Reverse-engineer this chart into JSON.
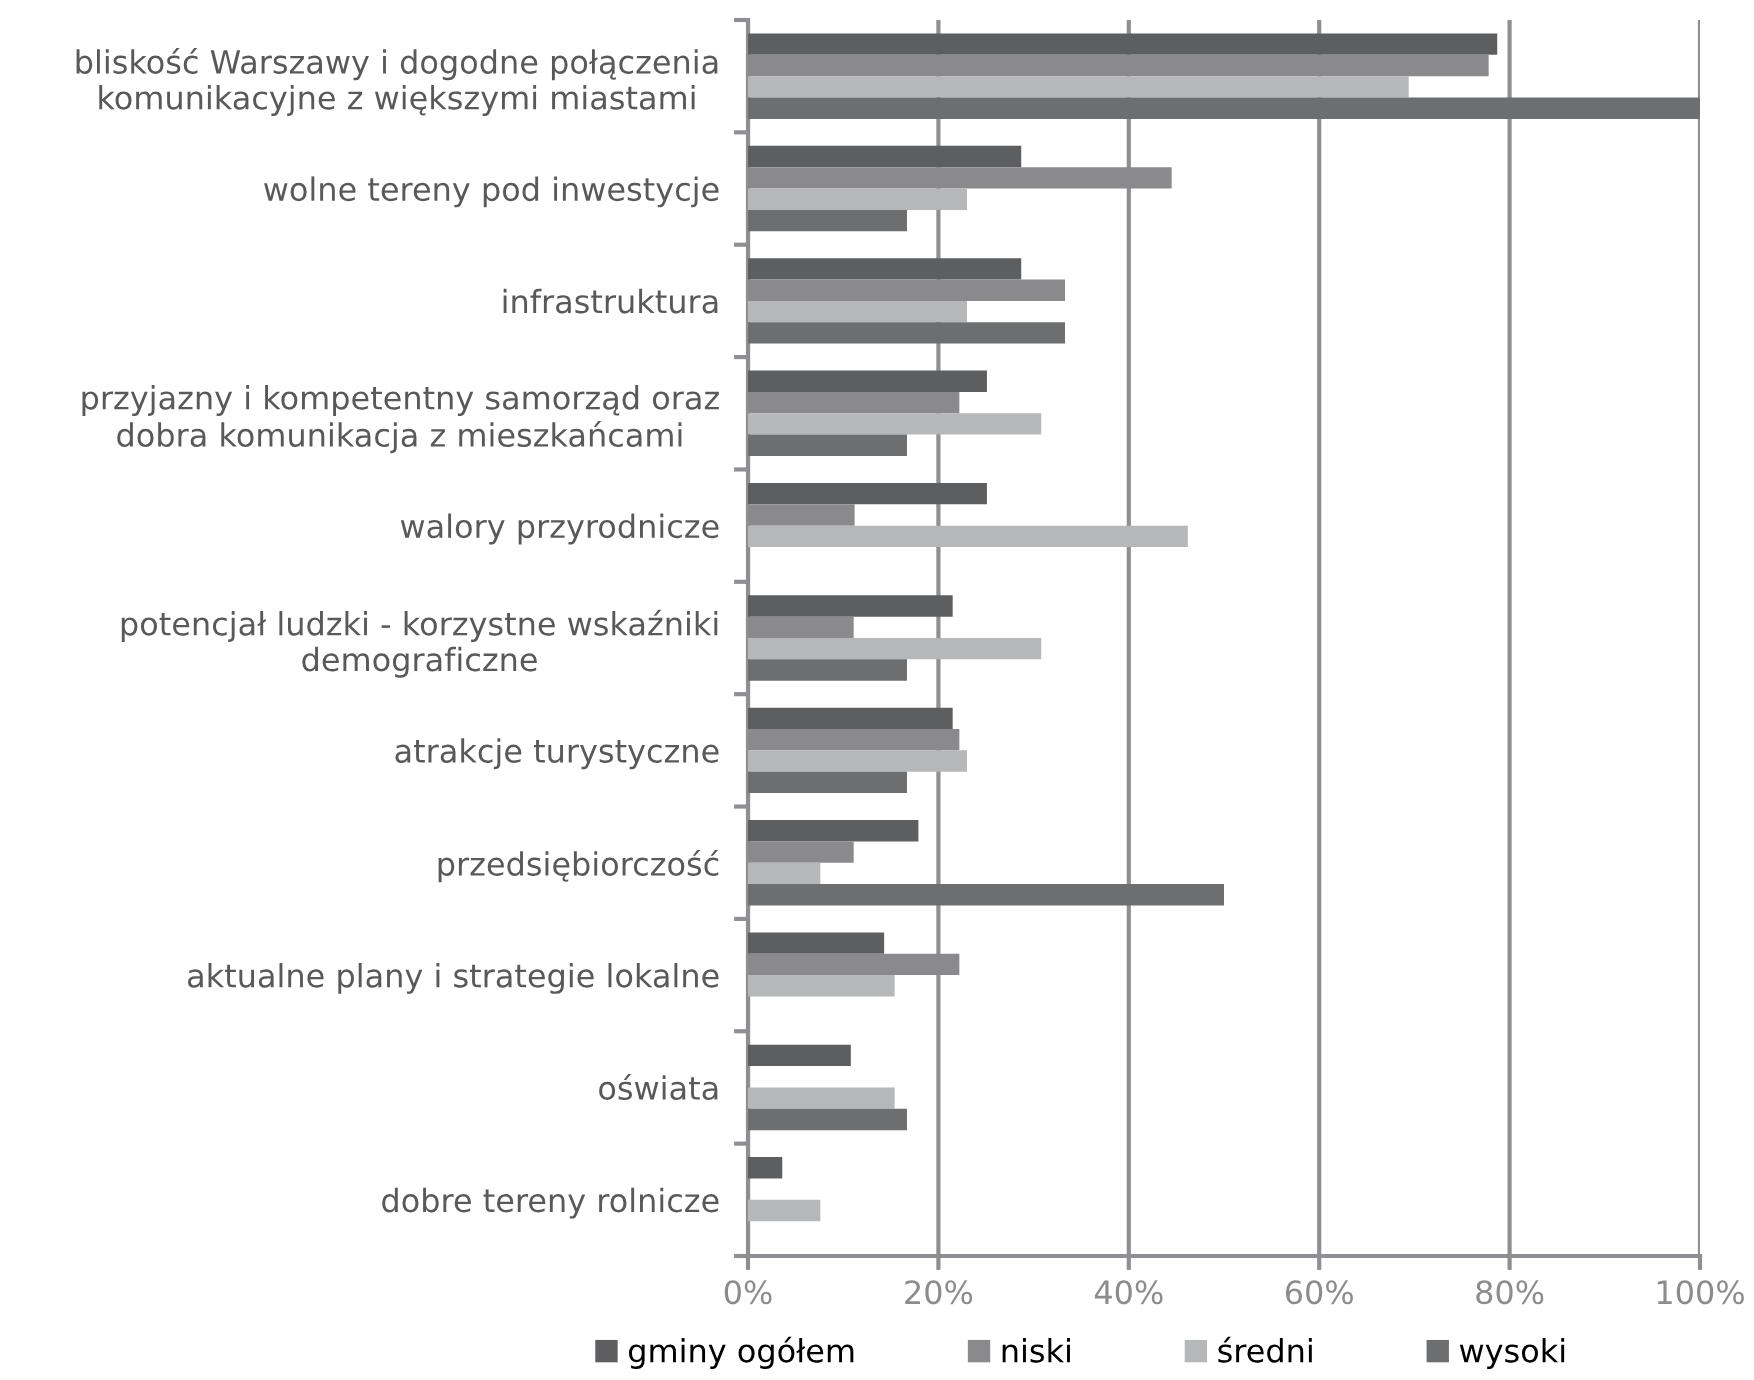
{
  "chart_data": {
    "type": "bar",
    "orientation": "horizontal",
    "categories": [
      "bliskość Warszawy i dogodne połączenia\nkomunikacyjne z większymi miastami",
      "wolne tereny pod inwestycje",
      "infrastruktura",
      "przyjazny i kompetentny samorząd oraz\ndobra komunikacja z mieszkańcami",
      "walory przyrodnicze",
      "potencjał ludzki - korzystne wskaźniki\ndemograficzne",
      "atrakcje turystyczne",
      "przedsiębiorczość",
      "aktualne plany i strategie lokalne",
      "oświata",
      "dobre tereny rolnicze"
    ],
    "series": [
      {
        "name": "gminy ogółem",
        "color": "#5d5e60",
        "values": [
          78.7,
          28.7,
          28.7,
          25.1,
          25.1,
          21.5,
          21.5,
          17.9,
          14.3,
          10.8,
          3.6
        ]
      },
      {
        "name": "niski",
        "color": "#8a8a8c",
        "values": [
          77.8,
          44.5,
          33.3,
          22.2,
          11.2,
          11.1,
          22.2,
          11.1,
          22.2,
          0,
          0
        ]
      },
      {
        "name": "średni",
        "color": "#b6b7b9",
        "values": [
          69.4,
          23.0,
          23.0,
          30.8,
          46.2,
          30.8,
          23.0,
          7.6,
          15.4,
          15.4,
          7.6
        ]
      },
      {
        "name": "wysoki",
        "color": "#6d6e70",
        "values": [
          100,
          16.7,
          33.3,
          16.7,
          0,
          16.7,
          16.7,
          50.0,
          0,
          16.7,
          0
        ]
      }
    ],
    "xlim": [
      0,
      100
    ],
    "xticks": [
      {
        "value": 0,
        "label": "0%"
      },
      {
        "value": 20,
        "label": "20%"
      },
      {
        "value": 40,
        "label": "40%"
      },
      {
        "value": 60,
        "label": "60%"
      },
      {
        "value": 80,
        "label": "80%"
      },
      {
        "value": 100,
        "label": "100%"
      }
    ],
    "grid": "x",
    "legend": "bottom"
  }
}
